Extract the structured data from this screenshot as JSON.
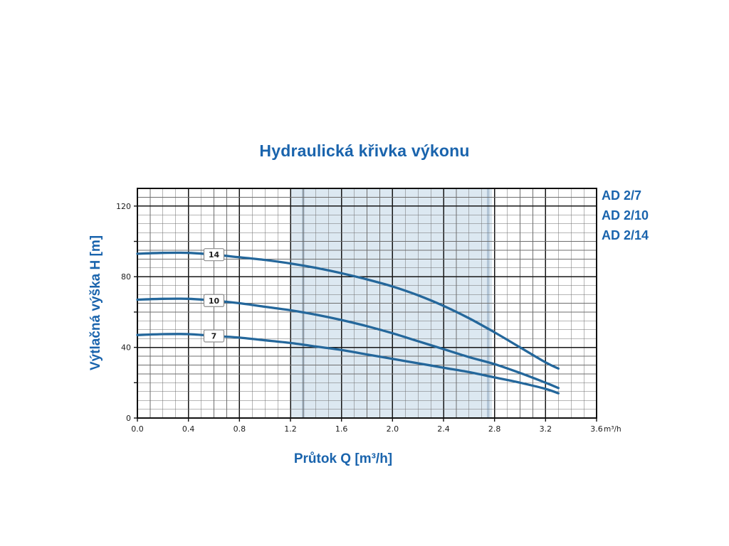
{
  "title": "Hydraulická křivka výkonu",
  "chart_data": {
    "type": "line",
    "title": "Hydraulická křivka výkonu",
    "xlabel": "Průtok Q [m³/h]",
    "ylabel": "Výtlačná výška H [m]",
    "x_unit_label": "m³/h",
    "xlim": [
      0,
      3.6
    ],
    "ylim": [
      0,
      130
    ],
    "x_major_step": 0.4,
    "x_minor_step": 0.1,
    "y_major_step": 40,
    "y_minor_step": 5,
    "y_tick_minor_step": 20,
    "x_tick_labels": [
      "0.0",
      "0.4",
      "0.8",
      "1.2",
      "1.6",
      "2.0",
      "2.4",
      "2.8",
      "3.2",
      "3.6"
    ],
    "y_tick_labels": [
      "0",
      "40",
      "80",
      "120"
    ],
    "grid": true,
    "legend_position": "outside-top-right",
    "legend": [
      "AD 2/7",
      "AD 2/10",
      "AD 2/14"
    ],
    "highlight_band": {
      "from": 1.2,
      "to": 2.78,
      "color": "#dce8f1",
      "edge_lines": [
        1.3,
        2.75
      ],
      "edge_color": "#b2c5d6"
    },
    "series": [
      {
        "name": "AD 2/14",
        "curve_label": "14",
        "label_at_x": 0.6,
        "x": [
          0,
          0.2,
          0.4,
          0.6,
          0.8,
          1.0,
          1.2,
          1.4,
          1.6,
          1.8,
          2.0,
          2.2,
          2.4,
          2.6,
          2.8,
          3.0,
          3.2,
          3.3
        ],
        "h": [
          93,
          93.5,
          93.5,
          92.5,
          91,
          89.5,
          87.5,
          85,
          82,
          78.5,
          74.5,
          69.5,
          63.5,
          56.5,
          48.5,
          40,
          31.5,
          28
        ]
      },
      {
        "name": "AD 2/10",
        "curve_label": "10",
        "label_at_x": 0.6,
        "x": [
          0,
          0.2,
          0.4,
          0.6,
          0.8,
          1.0,
          1.2,
          1.4,
          1.6,
          1.8,
          2.0,
          2.2,
          2.4,
          2.6,
          2.8,
          3.0,
          3.2,
          3.3
        ],
        "h": [
          67,
          67.5,
          67.5,
          66.5,
          65,
          63,
          61,
          58.5,
          55.5,
          52,
          48,
          43.5,
          39,
          34.5,
          30.5,
          25.5,
          20,
          17
        ]
      },
      {
        "name": "AD 2/7",
        "curve_label": "7",
        "label_at_x": 0.6,
        "x": [
          0,
          0.2,
          0.4,
          0.6,
          0.8,
          1.0,
          1.2,
          1.4,
          1.6,
          1.8,
          2.0,
          2.2,
          2.4,
          2.6,
          2.8,
          3.0,
          3.2,
          3.3
        ],
        "h": [
          47,
          47.5,
          47.5,
          46.5,
          45.5,
          44,
          42.5,
          40.5,
          38.5,
          36,
          33.5,
          31,
          28.5,
          26,
          23,
          20,
          16.5,
          14
        ]
      }
    ],
    "colors": {
      "accent_text": "#1a64ad",
      "curve": "#24679b",
      "grid_minor": "#6e6e6e",
      "grid_major": "#161616",
      "band": "#dce8f1",
      "tick_text": "#1c1c1c",
      "axis": "#111111"
    }
  }
}
